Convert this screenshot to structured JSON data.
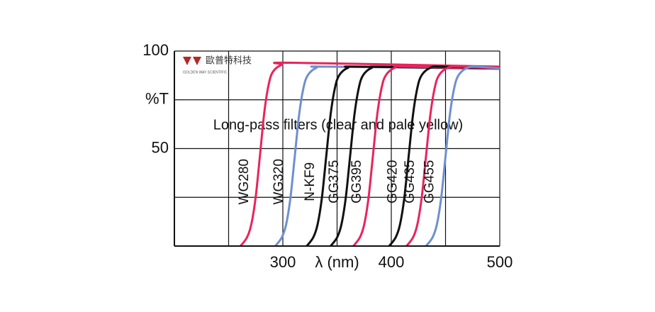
{
  "chart_data": {
    "type": "line",
    "annotation": "Long-pass filters (clear and pale yellow)",
    "watermark": {
      "name": "歐普特科技",
      "subtitle": "GOLDEN WAY SCIENTIFIC"
    },
    "ylabel": "%T",
    "ylabel_at": 75,
    "xlabel": "λ (nm)",
    "xlabel_at": 350,
    "xlim": [
      200,
      500
    ],
    "ylim": [
      0,
      100
    ],
    "xticks": [
      300,
      400,
      500
    ],
    "yticks": [
      50,
      100
    ],
    "xgrid": [
      200,
      250,
      300,
      350,
      400,
      450,
      500
    ],
    "ygrid": [
      0,
      25,
      50,
      75,
      100
    ],
    "series": [
      {
        "name": "WG280",
        "color": "#e8245c",
        "x": [
          261,
          267,
          271,
          275,
          279,
          283,
          287,
          291,
          299,
          309,
          500
        ],
        "values": [
          0,
          4.5,
          11.3,
          25.3,
          47,
          69,
          83,
          89.5,
          93,
          94,
          92
        ]
      },
      {
        "name": "WG320",
        "color": "#6f8fd0",
        "x": [
          293,
          299,
          303,
          307,
          311,
          315,
          319,
          323,
          331,
          341,
          500
        ],
        "values": [
          0,
          4.4,
          11,
          24.7,
          46,
          67.3,
          81,
          87.6,
          91.4,
          92,
          91
        ]
      },
      {
        "name": "N-KF9",
        "color": "#111111",
        "x": [
          322,
          328,
          332,
          336,
          340,
          344,
          348,
          352,
          360,
          370,
          500
        ],
        "values": [
          0,
          4.4,
          11,
          24.7,
          46,
          67.3,
          81,
          87.6,
          91.4,
          92,
          91
        ]
      },
      {
        "name": "GG375",
        "color": "#111111",
        "x": [
          344,
          350,
          354,
          358,
          362,
          366,
          370,
          374,
          382,
          392,
          500
        ],
        "values": [
          0,
          4.4,
          11,
          24.7,
          46,
          67.3,
          81,
          87.6,
          91.4,
          92,
          91
        ]
      },
      {
        "name": "GG395",
        "color": "#e8245c",
        "x": [
          365,
          371,
          375,
          379,
          383,
          387,
          391,
          395,
          403,
          413,
          500
        ],
        "values": [
          0,
          4.4,
          11,
          24.7,
          46,
          67.3,
          81,
          87.6,
          91.4,
          92,
          91
        ]
      },
      {
        "name": "GG420",
        "color": "#111111",
        "x": [
          398,
          404,
          408,
          412,
          416,
          420,
          424,
          428,
          436,
          446,
          500
        ],
        "values": [
          0,
          4.4,
          11,
          24.7,
          46,
          67.3,
          81,
          87.6,
          91.4,
          92,
          91
        ]
      },
      {
        "name": "GG435",
        "color": "#e8245c",
        "x": [
          414,
          420,
          424,
          428,
          432,
          436,
          440,
          444,
          452,
          462,
          500
        ],
        "values": [
          0,
          4.4,
          11,
          24.7,
          46,
          67.3,
          81,
          87.6,
          91.4,
          92,
          91
        ]
      },
      {
        "name": "GG455",
        "color": "#6f8fd0",
        "x": [
          432,
          438,
          442,
          446,
          450,
          454,
          458,
          462,
          470,
          480,
          500
        ],
        "values": [
          0,
          4.4,
          11,
          24.7,
          46,
          67.3,
          81,
          87.6,
          91.4,
          92,
          91
        ]
      }
    ]
  }
}
